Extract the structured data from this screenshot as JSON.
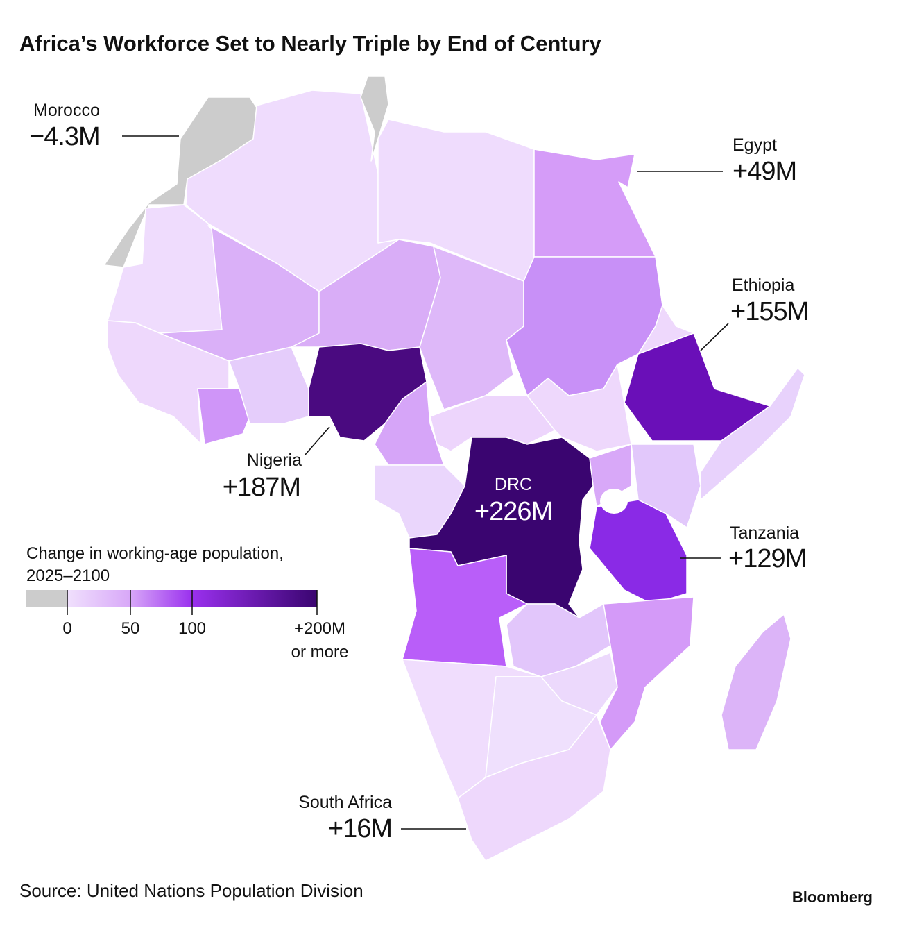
{
  "header": {
    "title": "Africa’s Workforce Set to Nearly Triple by End of Century"
  },
  "annotations": [
    {
      "country": "Morocco",
      "value": "−4.3M"
    },
    {
      "country": "Egypt",
      "value": "+49M"
    },
    {
      "country": "Ethiopia",
      "value": "+155M"
    },
    {
      "country": "Nigeria",
      "value": "+187M"
    },
    {
      "country": "DRC",
      "value": "+226M"
    },
    {
      "country": "Tanzania",
      "value": "+129M"
    },
    {
      "country": "South Africa",
      "value": "+16M"
    }
  ],
  "legend": {
    "title": [
      "Change in working-age population,",
      "2025–2100"
    ],
    "ticks": [
      "0",
      "50",
      "100",
      "+200M"
    ],
    "tick_note": "or more"
  },
  "footer": {
    "source": "Source: United Nations Population Division",
    "logo": "Bloomberg"
  }
}
